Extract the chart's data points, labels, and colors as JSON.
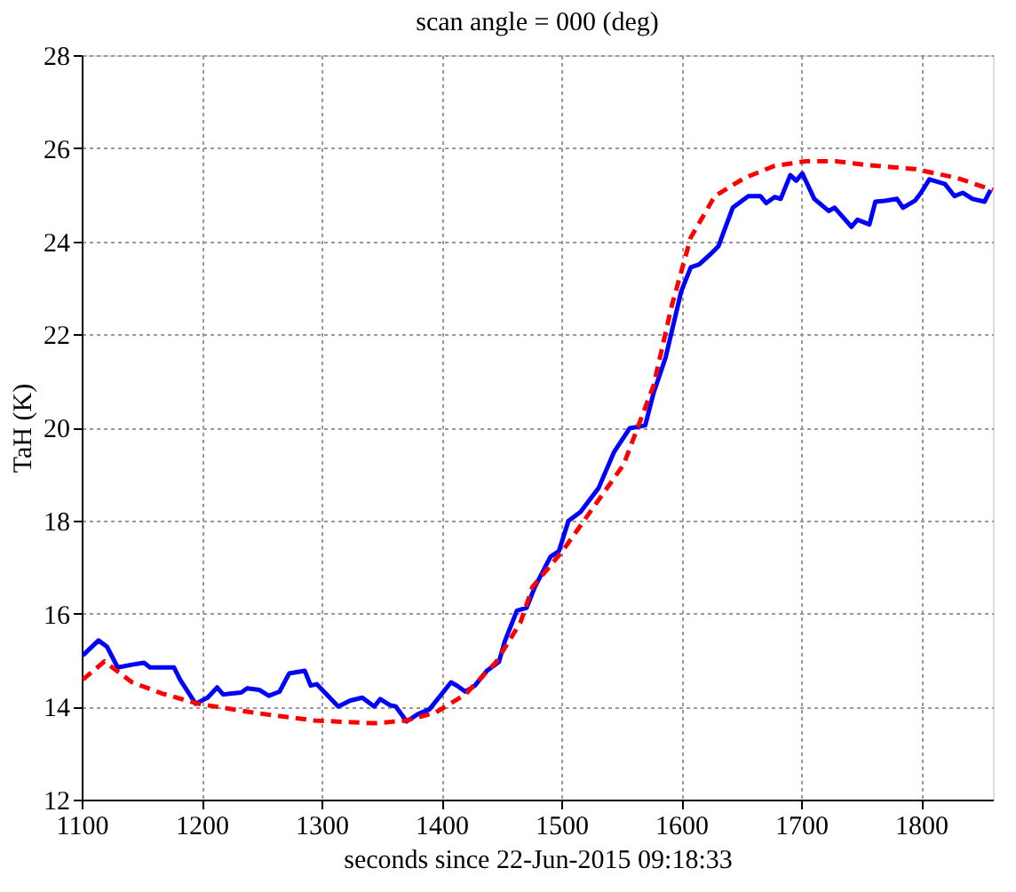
{
  "chart_data": {
    "type": "line",
    "title": "scan angle = 000 (deg)",
    "xlabel": "seconds since 22-Jun-2015 09:18:33",
    "ylabel": "TaH (K)",
    "xlim": [
      1100,
      1860
    ],
    "xticks": [
      1100,
      1200,
      1300,
      1400,
      1500,
      1600,
      1700,
      1800
    ],
    "ylim": [
      12,
      28
    ],
    "yticks": [
      12,
      14,
      16,
      18,
      20,
      22,
      24,
      26,
      28
    ],
    "grid": true,
    "marker": "none",
    "series": [
      {
        "color": "#0000ff",
        "line_style": "solid",
        "x": [
          1101,
          1114,
          1121,
          1130,
          1142,
          1152,
          1157,
          1167,
          1177,
          1182,
          1195,
          1205,
          1213,
          1218,
          1233,
          1238,
          1248,
          1256,
          1265,
          1273,
          1286,
          1291,
          1296,
          1314,
          1324,
          1334,
          1344,
          1349,
          1357,
          1362,
          1371,
          1380,
          1390,
          1400,
          1408,
          1413,
          1420,
          1428,
          1438,
          1448,
          1453,
          1463,
          1471,
          1478,
          1491,
          1498,
          1506,
          1516,
          1531,
          1544,
          1557,
          1570,
          1577,
          1587,
          1600,
          1608,
          1615,
          1626,
          1631,
          1643,
          1656,
          1666,
          1671,
          1678,
          1683,
          1691,
          1696,
          1701,
          1711,
          1723,
          1728,
          1742,
          1747,
          1757,
          1762,
          1770,
          1780,
          1785,
          1795,
          1800,
          1807,
          1820,
          1828,
          1835,
          1843,
          1853,
          1858
        ],
        "values": [
          15.1,
          15.42,
          15.29,
          14.84,
          14.9,
          14.94,
          14.84,
          14.84,
          14.84,
          14.58,
          14.06,
          14.19,
          14.41,
          14.26,
          14.3,
          14.39,
          14.36,
          14.23,
          14.32,
          14.71,
          14.77,
          14.45,
          14.48,
          14.0,
          14.13,
          14.19,
          14.0,
          14.16,
          14.03,
          14.0,
          13.68,
          13.83,
          13.94,
          14.26,
          14.52,
          14.45,
          14.32,
          14.45,
          14.77,
          14.96,
          15.41,
          16.06,
          16.12,
          16.57,
          17.22,
          17.34,
          17.99,
          18.18,
          18.69,
          19.47,
          19.98,
          20.04,
          20.74,
          21.5,
          22.92,
          23.44,
          23.5,
          23.76,
          23.89,
          24.72,
          24.97,
          24.97,
          24.82,
          24.95,
          24.91,
          25.42,
          25.3,
          25.46,
          24.91,
          24.65,
          24.72,
          24.31,
          24.46,
          24.36,
          24.85,
          24.87,
          24.91,
          24.72,
          24.87,
          25.04,
          25.33,
          25.23,
          24.97,
          25.04,
          24.91,
          24.85,
          25.1
        ]
      },
      {
        "color": "#ff0000",
        "line_style": "dashed",
        "x": [
          1101,
          1119,
          1142,
          1167,
          1197,
          1243,
          1294,
          1344,
          1371,
          1395,
          1420,
          1446,
          1466,
          1476,
          1501,
          1552,
          1577,
          1592,
          1608,
          1628,
          1653,
          1678,
          1704,
          1729,
          1754,
          1795,
          1830,
          1860
        ],
        "values": [
          14.58,
          14.97,
          14.52,
          14.28,
          14.06,
          13.87,
          13.7,
          13.64,
          13.7,
          13.87,
          14.26,
          14.97,
          15.81,
          16.57,
          17.34,
          19.2,
          20.9,
          22.6,
          24.08,
          24.97,
          25.36,
          25.62,
          25.72,
          25.72,
          25.64,
          25.55,
          25.36,
          25.1
        ]
      }
    ]
  }
}
